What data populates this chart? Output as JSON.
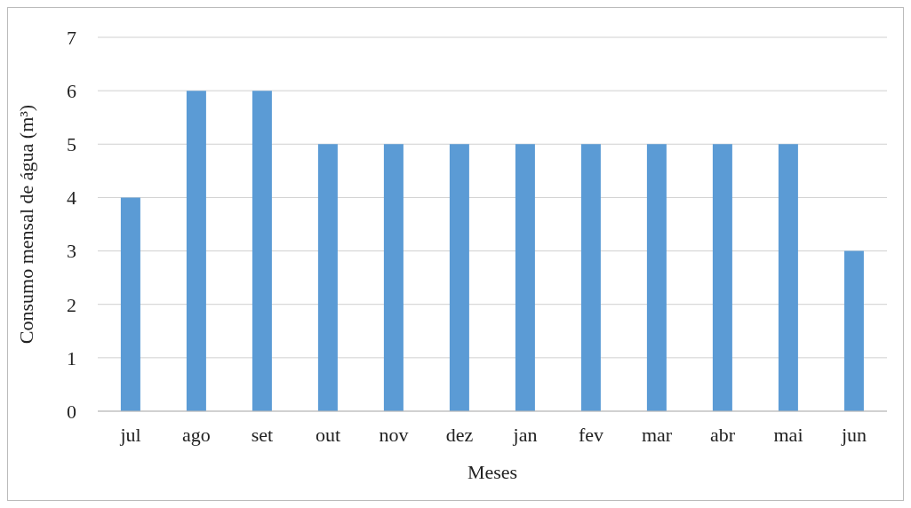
{
  "chart_data": {
    "type": "bar",
    "xlabel": "Meses",
    "ylabel": "Consumo mensal de água (m³)",
    "categories": [
      "jul",
      "ago",
      "set",
      "out",
      "nov",
      "dez",
      "jan",
      "fev",
      "mar",
      "abr",
      "mai",
      "jun"
    ],
    "values": [
      4,
      6,
      6,
      5,
      5,
      5,
      5,
      5,
      5,
      5,
      5,
      3
    ],
    "color": "#5b9bd5",
    "ylim": [
      0,
      7
    ],
    "yticks": [
      0,
      1,
      2,
      3,
      4,
      5,
      6,
      7
    ],
    "grid": "y"
  }
}
